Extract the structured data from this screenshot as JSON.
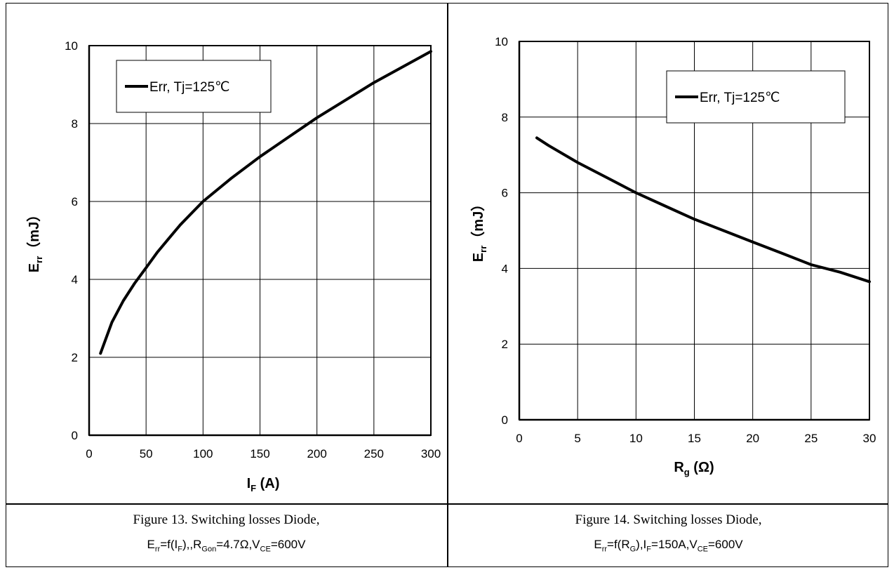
{
  "chart_data": [
    {
      "type": "line",
      "xlabel_main": "I",
      "xlabel_sub": "F",
      "xlabel_unit": " (A)",
      "ylabel_main": "E",
      "ylabel_sub": "rr",
      "ylabel_unit": "（mJ）",
      "xlim": [
        0,
        300
      ],
      "ylim": [
        0,
        10
      ],
      "x_ticks": [
        "0",
        "50",
        "100",
        "150",
        "200",
        "250",
        "300"
      ],
      "y_ticks": [
        "0",
        "2",
        "4",
        "6",
        "8",
        "10"
      ],
      "grid": true,
      "legend_position": "top-left",
      "series": [
        {
          "name": "Err, Tj=125℃",
          "color": "#000000",
          "x": [
            10,
            20,
            30,
            40,
            50,
            60,
            70,
            80,
            90,
            100,
            125,
            150,
            175,
            200,
            225,
            250,
            275,
            300
          ],
          "y": [
            2.1,
            2.9,
            3.45,
            3.9,
            4.3,
            4.7,
            5.05,
            5.4,
            5.7,
            6.0,
            6.6,
            7.15,
            7.65,
            8.15,
            8.6,
            9.05,
            9.45,
            9.85
          ]
        }
      ]
    },
    {
      "type": "line",
      "xlabel_main": "R",
      "xlabel_sub": "g",
      "xlabel_unit": " (Ω)",
      "ylabel_main": "E",
      "ylabel_sub": "rr",
      "ylabel_unit": "（mJ）",
      "xlim": [
        0,
        30
      ],
      "ylim": [
        0,
        10
      ],
      "x_ticks": [
        "0",
        "5",
        "10",
        "15",
        "20",
        "25",
        "30"
      ],
      "y_ticks": [
        "0",
        "2",
        "4",
        "6",
        "8",
        "10"
      ],
      "grid": true,
      "legend_position": "top-right",
      "series": [
        {
          "name": "Err, Tj=125℃",
          "color": "#000000",
          "x": [
            1.5,
            2.5,
            5,
            7.5,
            10,
            12.5,
            15,
            17.5,
            20,
            22.5,
            25,
            27.5,
            30
          ],
          "y": [
            7.45,
            7.25,
            6.8,
            6.4,
            6.0,
            5.65,
            5.3,
            5.0,
            4.7,
            4.4,
            4.1,
            3.9,
            3.65
          ]
        }
      ]
    }
  ],
  "captions": [
    {
      "title": "Figure 13. Switching losses Diode,",
      "formula_parts": [
        "E",
        "rr",
        "=f(I",
        "F",
        "),,R",
        "Gon",
        "=4.7Ω,V",
        "CE",
        "=600V"
      ]
    },
    {
      "title": "Figure 14. Switching losses Diode,",
      "formula_parts": [
        "E",
        "rr",
        "=f(R",
        "G",
        "),I",
        "F",
        "=150A,V",
        "CE",
        "=600V"
      ]
    }
  ]
}
